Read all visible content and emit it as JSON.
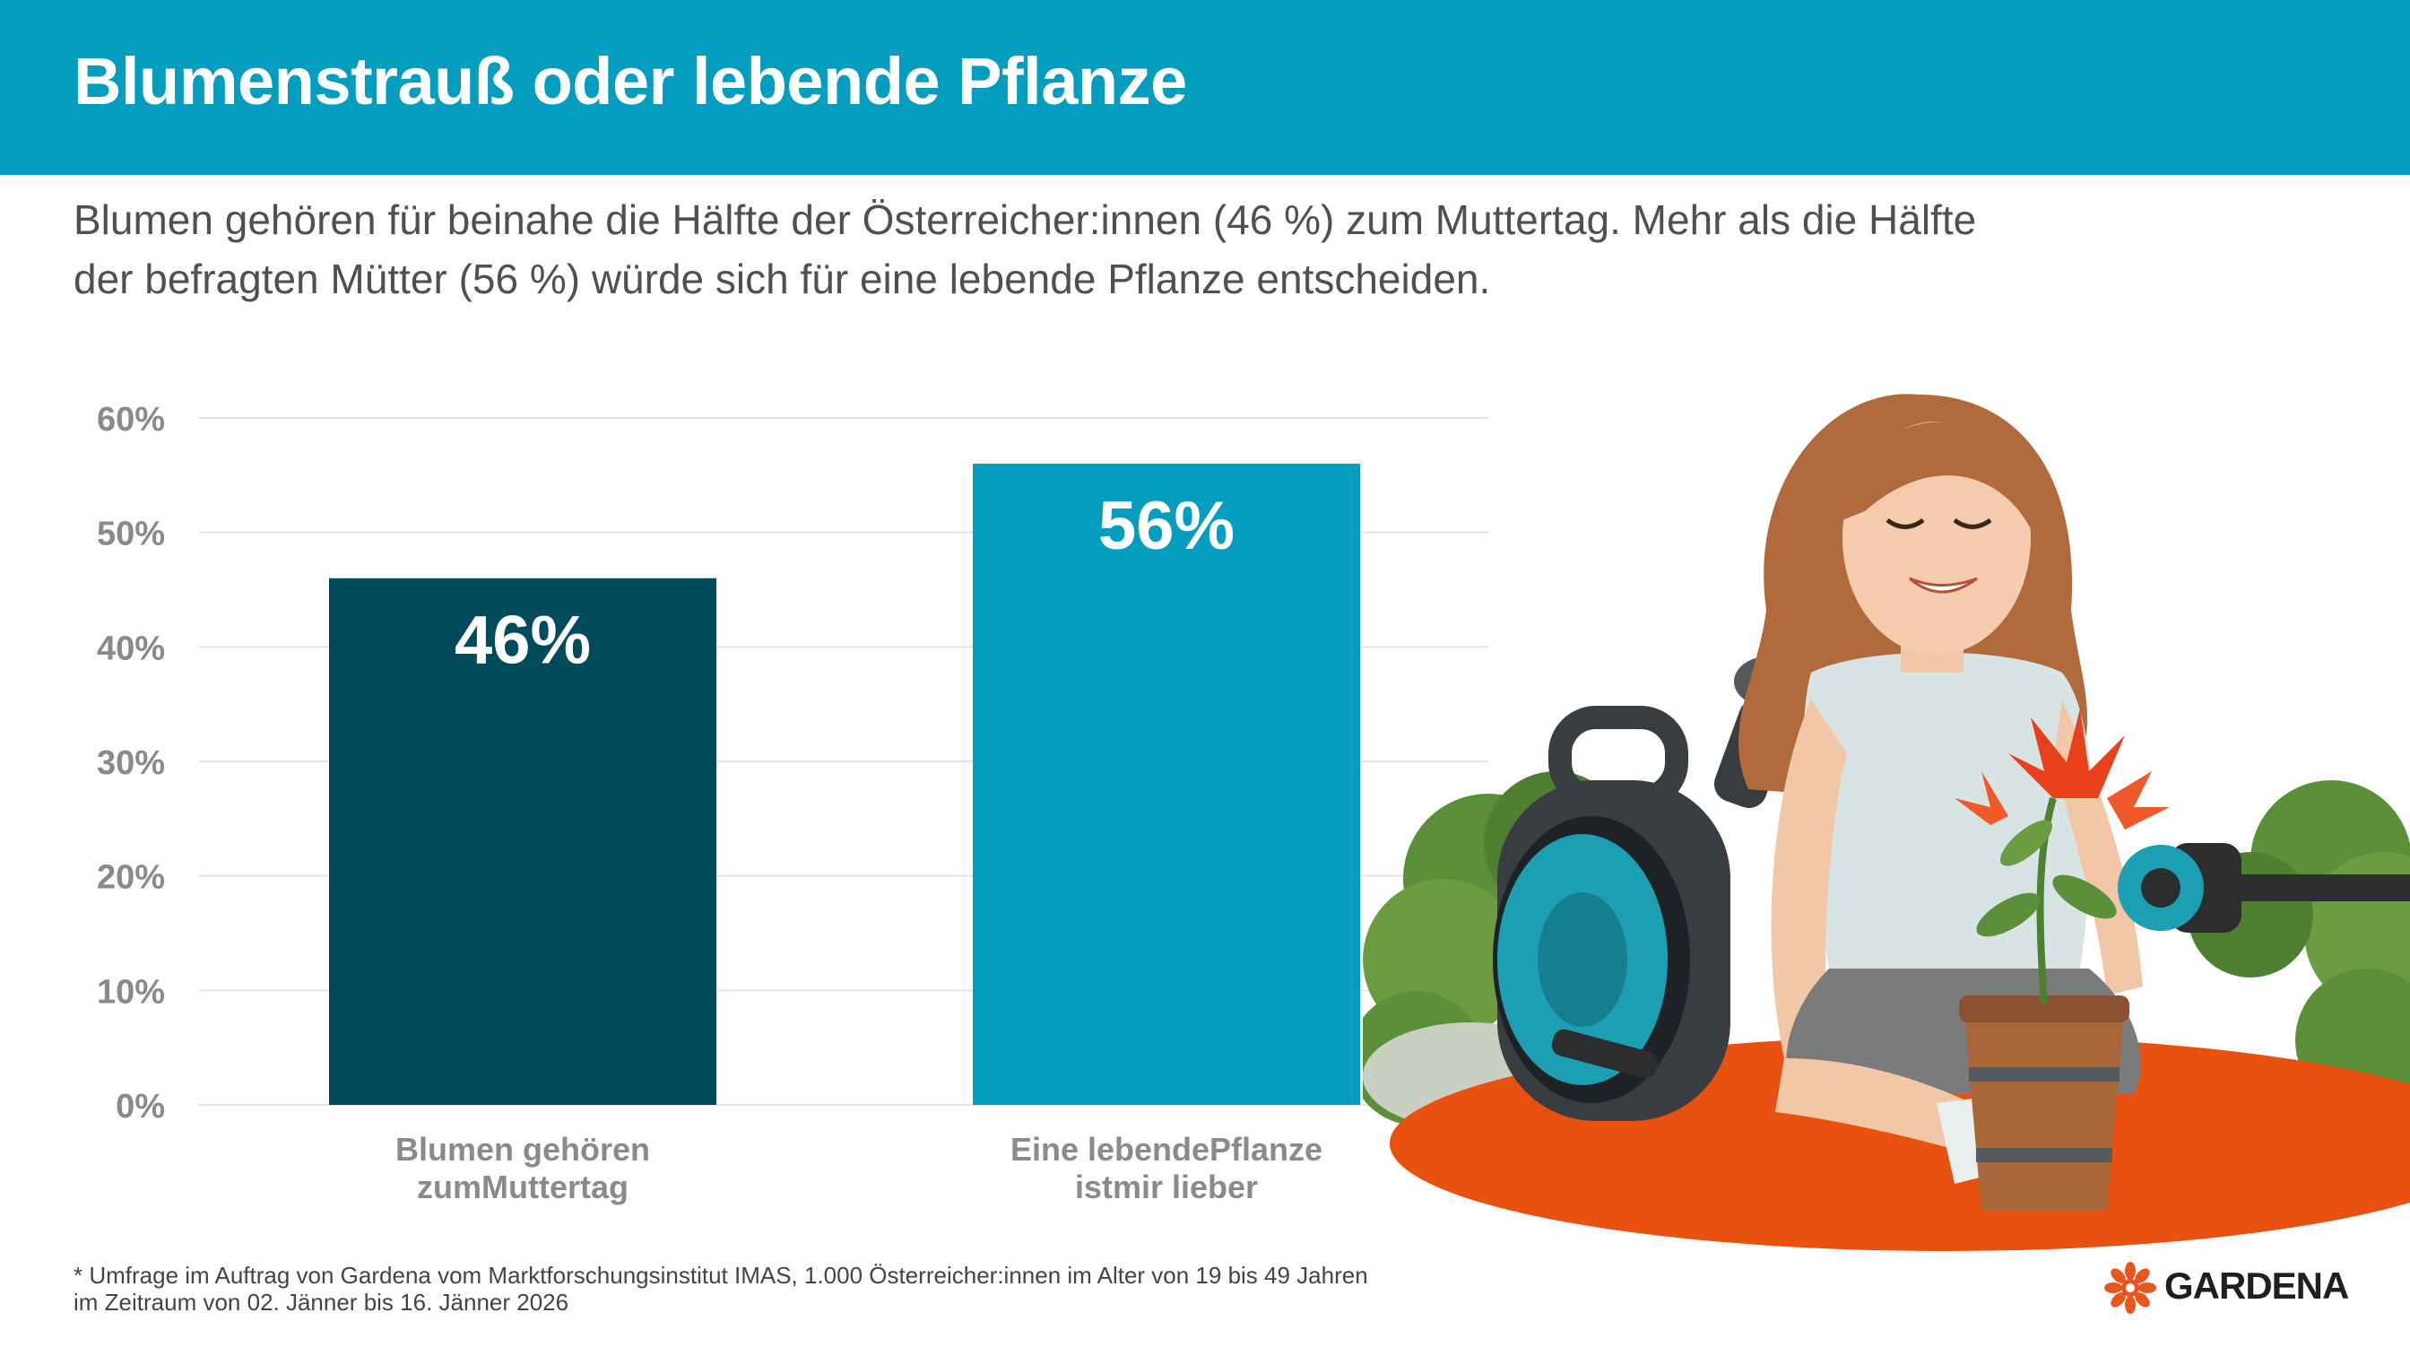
{
  "header": {
    "title": "Blumenstrauß oder lebende Pflanze"
  },
  "subtitle": "Blumen gehören für beinahe die Hälfte der Österreicher:innen (46 %) zum Muttertag. Mehr als die Hälfte der befragten Mütter (56 %) würde sich für eine lebende Pflanze entscheiden.",
  "chart_data": {
    "type": "bar",
    "categories": [
      "Blumen gehören\nzumMuttertag",
      "Eine lebendePflanze\nistmir lieber"
    ],
    "values": [
      46,
      56
    ],
    "data_labels": [
      "46%",
      "56%"
    ],
    "bar_colors": [
      "#004b5b",
      "#039dbf"
    ],
    "ylim": [
      0,
      60
    ],
    "yticks": [
      0,
      10,
      20,
      30,
      40,
      50,
      60
    ],
    "ytick_labels": [
      "0%",
      "10%",
      "20%",
      "30%",
      "40%",
      "50%",
      "60%"
    ],
    "grid": true,
    "legend": "none"
  },
  "footnote": "* Umfrage im Auftrag von Gardena vom Marktforschungsinstitut IMAS, 1.000 Österreicher:innen im Alter von 19 bis 49 Jahren\n  im Zeitraum von 02. Jänner bis 16. Jänner 2026",
  "logo": {
    "text": "GARDENA",
    "icon": "gardena-flower-icon",
    "color": "#e8561e"
  },
  "illustration": {
    "icon": "woman-watering-plant-illustration"
  },
  "colors": {
    "accent": "#039dbf",
    "dark": "#004b5b",
    "orange": "#e8561e"
  }
}
